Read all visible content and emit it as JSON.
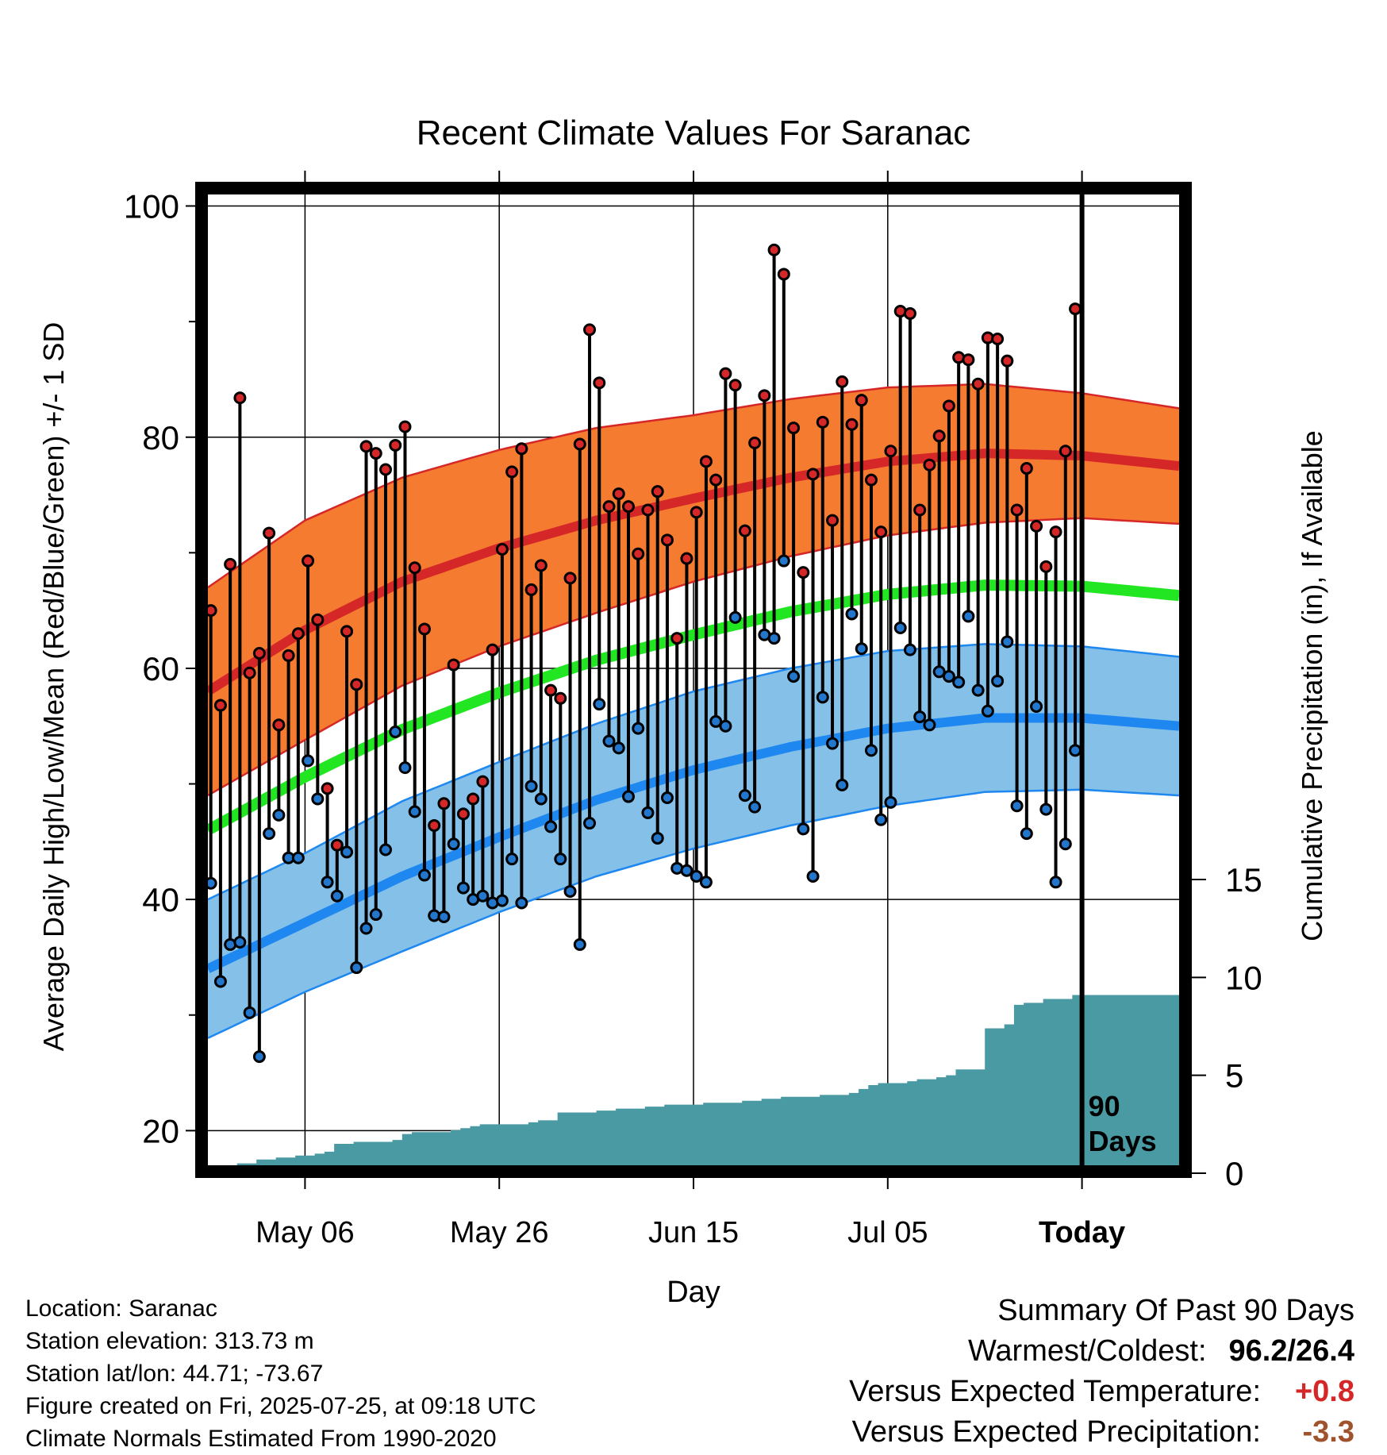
{
  "chart_data": {
    "type": "line",
    "title": "Recent Climate Values For Saranac",
    "xlabel": "Day",
    "ylabel": "Average Daily High/Low/Mean (Red/Blue/Green) +/- 1 SD",
    "y2label": "Cumulative Precipitation (in), If Available",
    "ylim": [
      17,
      101
    ],
    "y2lim": [
      0,
      15
    ],
    "yticks": [
      20,
      40,
      60,
      80,
      100
    ],
    "yminor_ticks": [
      30,
      50,
      70,
      90
    ],
    "y2ticks": [
      0,
      5,
      10,
      15
    ],
    "x_range_days": [
      0,
      100
    ],
    "x_ticks": [
      {
        "day": 10,
        "label": "May 06"
      },
      {
        "day": 30,
        "label": "May 26"
      },
      {
        "day": 50,
        "label": "Jun 15"
      },
      {
        "day": 70,
        "label": "Jul 05"
      },
      {
        "day": 90,
        "label": "Today"
      }
    ],
    "today_day": 90,
    "today_annotation": [
      "90",
      "Days"
    ],
    "grid": true,
    "colors": {
      "high_band": "#f47b30",
      "high_line": "#d62728",
      "low_band": "#84c0e8",
      "low_line": "#1e88f0",
      "mean_line": "#22e622",
      "precip": "#4a9aa3",
      "high_marker": "#d62728",
      "low_marker": "#2277cc"
    },
    "normals": {
      "days": [
        0,
        10,
        20,
        30,
        40,
        50,
        60,
        70,
        80,
        90,
        100
      ],
      "high_mean": [
        58,
        63.3,
        67.5,
        70.4,
        72.8,
        74.7,
        76.5,
        77.9,
        78.6,
        78.4,
        77.5
      ],
      "high_sd": [
        9,
        9.5,
        9,
        8.5,
        8,
        7.2,
        6.8,
        6.4,
        6,
        5.4,
        5
      ],
      "low_mean": [
        34,
        38,
        42,
        45.4,
        48.6,
        51.2,
        53.2,
        54.8,
        55.7,
        55.7,
        55
      ],
      "low_sd": [
        6,
        6,
        6.5,
        6.5,
        6.6,
        6.8,
        6.8,
        6.7,
        6.4,
        6.2,
        6
      ],
      "mean": [
        46,
        50.6,
        54.7,
        57.9,
        60.7,
        62.9,
        64.9,
        66.4,
        67.2,
        67.1,
        66.3
      ]
    },
    "daily": {
      "days": [
        0,
        1,
        2,
        3,
        4,
        5,
        6,
        7,
        8,
        9,
        10,
        11,
        12,
        13,
        14,
        15,
        16,
        17,
        18,
        19,
        20,
        21,
        22,
        23,
        24,
        25,
        26,
        27,
        28,
        29,
        30,
        31,
        32,
        33,
        34,
        35,
        36,
        37,
        38,
        39,
        40,
        41,
        42,
        43,
        44,
        45,
        46,
        47,
        48,
        49,
        50,
        51,
        52,
        53,
        54,
        55,
        56,
        57,
        58,
        59,
        60,
        61,
        62,
        63,
        64,
        65,
        66,
        67,
        68,
        69,
        70,
        71,
        72,
        73,
        74,
        75,
        76,
        77,
        78,
        79,
        80,
        81,
        82,
        83,
        84,
        85,
        86,
        87,
        88,
        89
      ],
      "high": [
        65,
        56.8,
        69,
        83.4,
        59.6,
        61.3,
        71.7,
        55.1,
        61.1,
        63,
        69.3,
        64.2,
        49.6,
        44.7,
        63.2,
        58.6,
        79.2,
        78.6,
        77.2,
        79.3,
        80.9,
        68.7,
        63.4,
        46.4,
        48.3,
        60.3,
        47.4,
        48.7,
        50.2,
        61.6,
        70.3,
        77,
        79,
        66.8,
        68.9,
        58.1,
        57.4,
        67.8,
        79.4,
        89.3,
        84.7,
        74,
        75.1,
        74,
        69.9,
        73.7,
        75.3,
        71.1,
        62.6,
        69.5,
        73.5,
        77.9,
        76.3,
        85.5,
        84.5,
        71.9,
        79.5,
        83.6,
        96.2,
        94.1,
        80.8,
        68.3,
        76.8,
        81.3,
        72.8,
        84.8,
        81.1,
        83.2,
        76.3,
        71.8,
        78.8,
        90.9,
        90.7,
        73.7,
        77.6,
        80.1,
        82.7,
        86.9,
        86.7,
        84.6,
        88.6,
        88.5,
        86.6,
        73.7,
        77.3,
        72.3,
        68.8,
        71.8,
        78.8,
        91.1
      ],
      "low": [
        41.4,
        32.9,
        36.1,
        36.3,
        30.2,
        26.4,
        45.7,
        47.3,
        43.6,
        43.6,
        52,
        48.7,
        41.5,
        40.3,
        44.1,
        34.1,
        37.5,
        38.7,
        44.3,
        54.5,
        51.4,
        47.6,
        42.1,
        38.6,
        38.5,
        44.8,
        41,
        40,
        40.3,
        39.7,
        39.9,
        43.5,
        39.7,
        49.8,
        48.7,
        46.3,
        43.5,
        40.7,
        36.1,
        46.6,
        56.9,
        53.7,
        53.1,
        48.9,
        54.8,
        47.5,
        45.3,
        48.8,
        42.7,
        42.5,
        42,
        41.5,
        55.4,
        55,
        64.4,
        49,
        48,
        62.9,
        62.6,
        69.3,
        59.3,
        46.1,
        42,
        57.5,
        53.5,
        49.9,
        64.7,
        61.7,
        52.9,
        46.9,
        48.4,
        63.5,
        61.6,
        55.8,
        55.1,
        59.7,
        59.3,
        58.8,
        64.5,
        58.1,
        56.3,
        58.9,
        62.3,
        48.1,
        45.7,
        56.7,
        47.8,
        41.5,
        44.8,
        52.9
      ]
    },
    "precip_cumulative": {
      "days": [
        0,
        1,
        2,
        3,
        5,
        7,
        9,
        11,
        12,
        13,
        15,
        17,
        19,
        20,
        21,
        23,
        25,
        26,
        27,
        28,
        30,
        33,
        34,
        36,
        40,
        42,
        45,
        47,
        50,
        51,
        52,
        55,
        57,
        59,
        62,
        63,
        66,
        67,
        68,
        69,
        72,
        73,
        75,
        76,
        77,
        80,
        82,
        83,
        84,
        86,
        89,
        90,
        91,
        100
      ],
      "values": [
        0,
        0.2,
        0.3,
        0.5,
        0.7,
        0.8,
        0.9,
        1,
        1.1,
        1.5,
        1.6,
        1.6,
        1.7,
        2,
        2.1,
        2.1,
        2.2,
        2.3,
        2.4,
        2.5,
        2.5,
        2.6,
        2.7,
        3.1,
        3.2,
        3.3,
        3.4,
        3.5,
        3.5,
        3.6,
        3.6,
        3.7,
        3.8,
        3.9,
        3.9,
        4,
        4.1,
        4.3,
        4.5,
        4.6,
        4.7,
        4.8,
        4.9,
        5,
        5.3,
        7.4,
        7.6,
        8.6,
        8.7,
        8.9,
        9.1,
        9.1,
        9.1,
        9.1
      ]
    }
  },
  "info": {
    "location": "Location: Saranac",
    "elevation": "Station elevation: 313.73 m",
    "latlon": "Station lat/lon: 44.71; -73.67",
    "created": "Figure created on Fri, 2025-07-25, at 09:18 UTC",
    "normals": "Climate Normals Estimated From 1990-2020"
  },
  "summary": {
    "title": "Summary Of Past 90 Days",
    "warmest_label": "Warmest/Coldest:",
    "warmest_value": "96.2/26.4",
    "temp_label": "Versus Expected Temperature:",
    "temp_value": "+0.8",
    "precip_label": "Versus Expected Precipitation:",
    "precip_value": "-3.3"
  }
}
